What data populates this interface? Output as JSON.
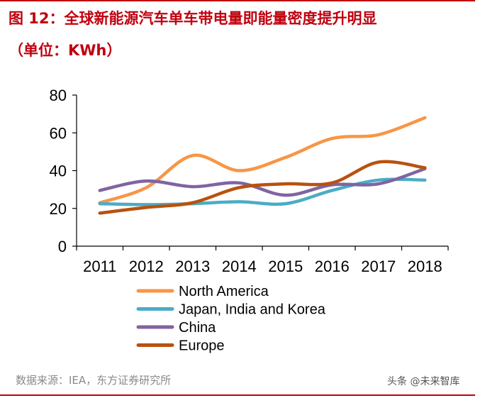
{
  "header": {
    "title": "图 12：全球新能源汽车单车带电量即能量密度提升明显",
    "subtitle": "（单位：KWh）"
  },
  "footer": {
    "source": "数据来源：IEA，东方证券研究所",
    "watermark": "头条 @未来智库"
  },
  "chart_data": {
    "type": "line",
    "x": [
      "2011",
      "2012",
      "2013",
      "2014",
      "2015",
      "2016",
      "2017",
      "2018"
    ],
    "ylim": [
      0,
      80
    ],
    "yticks": [
      0,
      20,
      40,
      60,
      80
    ],
    "grid": false,
    "legend_position": "bottom",
    "series": [
      {
        "name": "North America",
        "color": "#f79646",
        "values": [
          23,
          31,
          48,
          40,
          47,
          57,
          59,
          68
        ]
      },
      {
        "name": "Japan, India and Korea",
        "color": "#4bacc6",
        "values": [
          22.5,
          22,
          22.5,
          23.5,
          22.5,
          29.5,
          35,
          35
        ]
      },
      {
        "name": "China",
        "color": "#8064a2",
        "values": [
          29.5,
          34.5,
          31.5,
          33.5,
          27,
          32.5,
          33,
          41
        ]
      },
      {
        "name": "Europe",
        "color": "#b8520f",
        "values": [
          17.5,
          20.5,
          23,
          31,
          33,
          33.5,
          44.5,
          41.5
        ]
      }
    ]
  }
}
